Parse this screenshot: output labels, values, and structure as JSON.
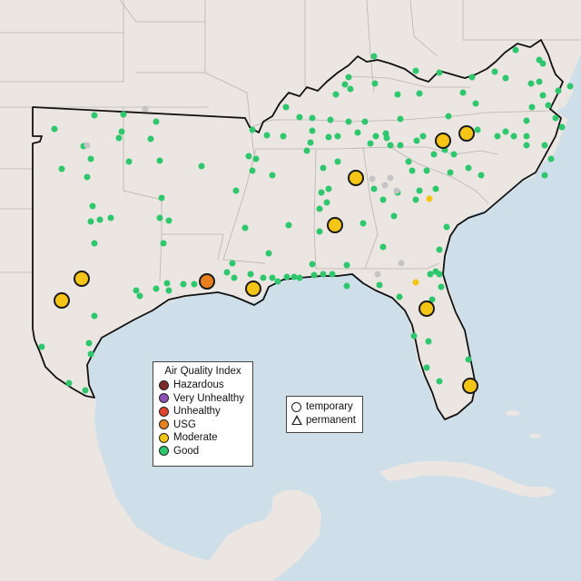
{
  "map": {
    "colors": {
      "water": "#cfdfe9",
      "land": "#ebe6e2",
      "state_border": "#b9b4b0",
      "region_outline": "#111111"
    }
  },
  "legend": {
    "title": "Air Quality Index",
    "items": [
      {
        "label": "Hazardous",
        "color": "#7e2a2a"
      },
      {
        "label": "Very Unhealthy",
        "color": "#8f4fb5"
      },
      {
        "label": "Unhealthy",
        "color": "#e2452f"
      },
      {
        "label": "USG",
        "color": "#e8801e"
      },
      {
        "label": "Moderate",
        "color": "#f5c515"
      },
      {
        "label": "Good",
        "color": "#2fc76e"
      }
    ]
  },
  "monitor_legend": {
    "items": [
      {
        "label": "temporary",
        "shape": "circle"
      },
      {
        "label": "permanent",
        "shape": "triangle"
      }
    ]
  },
  "monitors": {
    "moderate_temporary_large": [
      [
        488,
        155
      ],
      [
        514,
        147
      ],
      [
        392,
        196
      ],
      [
        369,
        248
      ],
      [
        90,
        307
      ],
      [
        68,
        331
      ],
      [
        279,
        318
      ],
      [
        470,
        340
      ],
      [
        518,
        425
      ]
    ],
    "usg_temporary_large": [
      [
        228,
        310
      ]
    ],
    "moderate_small": [
      [
        473,
        219
      ],
      [
        458,
        311
      ]
    ],
    "nodata_small": [
      [
        160,
        120
      ],
      [
        410,
        197
      ],
      [
        430,
        196
      ],
      [
        424,
        204
      ],
      [
        437,
        210
      ],
      [
        442,
        290
      ],
      [
        416,
        302
      ],
      [
        96,
        160
      ]
    ],
    "good_small": [
      [
        412,
        62
      ],
      [
        458,
        78
      ],
      [
        545,
        79
      ],
      [
        568,
        55
      ],
      [
        594,
        66
      ],
      [
        598,
        70
      ],
      [
        628,
        95
      ],
      [
        615,
        100
      ],
      [
        384,
        85
      ],
      [
        380,
        93
      ],
      [
        413,
        92
      ],
      [
        386,
        98
      ],
      [
        370,
        104
      ],
      [
        438,
        104
      ],
      [
        462,
        103
      ],
      [
        510,
        102
      ],
      [
        594,
        90
      ],
      [
        598,
        105
      ],
      [
        586,
        118
      ],
      [
        484,
        80
      ],
      [
        520,
        85
      ],
      [
        557,
        86
      ],
      [
        585,
        92
      ],
      [
        604,
        116
      ],
      [
        612,
        130
      ],
      [
        619,
        140
      ],
      [
        600,
        160
      ],
      [
        607,
        175
      ],
      [
        600,
        193
      ],
      [
        580,
        150
      ],
      [
        580,
        133
      ],
      [
        557,
        145
      ],
      [
        566,
        150
      ],
      [
        315,
        118
      ],
      [
        330,
        129
      ],
      [
        344,
        130
      ],
      [
        364,
        132
      ],
      [
        384,
        134
      ],
      [
        402,
        134
      ],
      [
        441,
        131
      ],
      [
        494,
        128
      ],
      [
        524,
        114
      ],
      [
        526,
        143
      ],
      [
        548,
        150
      ],
      [
        60,
        142
      ],
      [
        104,
        127
      ],
      [
        136,
        126
      ],
      [
        134,
        145
      ],
      [
        131,
        152
      ],
      [
        172,
        134
      ],
      [
        166,
        153
      ],
      [
        278,
        143
      ],
      [
        294,
        149
      ],
      [
        312,
        150
      ],
      [
        344,
        144
      ],
      [
        342,
        157
      ],
      [
        362,
        151
      ],
      [
        372,
        150
      ],
      [
        394,
        146
      ],
      [
        414,
        150
      ],
      [
        425,
        147
      ],
      [
        426,
        152
      ],
      [
        430,
        160
      ],
      [
        441,
        160
      ],
      [
        459,
        155
      ],
      [
        466,
        150
      ],
      [
        478,
        170
      ],
      [
        470,
        188
      ],
      [
        454,
        188
      ],
      [
        92,
        161
      ],
      [
        100,
        175
      ],
      [
        68,
        186
      ],
      [
        96,
        195
      ],
      [
        142,
        178
      ],
      [
        176,
        177
      ],
      [
        222,
        183
      ],
      [
        274,
        172
      ],
      [
        282,
        175
      ],
      [
        278,
        188
      ],
      [
        300,
        193
      ],
      [
        338,
        166
      ],
      [
        356,
        185
      ],
      [
        372,
        178
      ],
      [
        408,
        158
      ],
      [
        450,
        178
      ],
      [
        490,
        165
      ],
      [
        500,
        170
      ],
      [
        516,
        185
      ],
      [
        496,
        190
      ],
      [
        530,
        193
      ],
      [
        580,
        160
      ],
      [
        260,
        210
      ],
      [
        354,
        212
      ],
      [
        362,
        208
      ],
      [
        360,
        223
      ],
      [
        352,
        230
      ],
      [
        412,
        208
      ],
      [
        422,
        220
      ],
      [
        438,
        212
      ],
      [
        462,
        210
      ],
      [
        458,
        220
      ],
      [
        480,
        208
      ],
      [
        492,
        250
      ],
      [
        178,
        218
      ],
      [
        102,
        227
      ],
      [
        110,
        242
      ],
      [
        100,
        244
      ],
      [
        122,
        240
      ],
      [
        176,
        240
      ],
      [
        186,
        243
      ],
      [
        270,
        251
      ],
      [
        318,
        248
      ],
      [
        352,
        255
      ],
      [
        400,
        246
      ],
      [
        434,
        238
      ],
      [
        104,
        268
      ],
      [
        180,
        268
      ],
      [
        296,
        279
      ],
      [
        256,
        290
      ],
      [
        344,
        291
      ],
      [
        382,
        292
      ],
      [
        422,
        272
      ],
      [
        484,
        275
      ],
      [
        480,
        299
      ],
      [
        150,
        320
      ],
      [
        154,
        326
      ],
      [
        172,
        318
      ],
      [
        184,
        312
      ],
      [
        186,
        320
      ],
      [
        202,
        313
      ],
      [
        214,
        313
      ],
      [
        250,
        300
      ],
      [
        258,
        306
      ],
      [
        276,
        302
      ],
      [
        290,
        306
      ],
      [
        300,
        306
      ],
      [
        306,
        310
      ],
      [
        316,
        305
      ],
      [
        324,
        305
      ],
      [
        330,
        306
      ],
      [
        346,
        303
      ],
      [
        356,
        302
      ],
      [
        366,
        302
      ],
      [
        382,
        315
      ],
      [
        418,
        314
      ],
      [
        474,
        302
      ],
      [
        484,
        302
      ],
      [
        486,
        316
      ],
      [
        476,
        330
      ],
      [
        104,
        348
      ],
      [
        46,
        382
      ],
      [
        98,
        378
      ],
      [
        100,
        390
      ],
      [
        76,
        422
      ],
      [
        94,
        430
      ],
      [
        440,
        327
      ],
      [
        456,
        370
      ],
      [
        472,
        376
      ],
      [
        470,
        405
      ],
      [
        484,
        420
      ],
      [
        516,
        396
      ]
    ]
  }
}
